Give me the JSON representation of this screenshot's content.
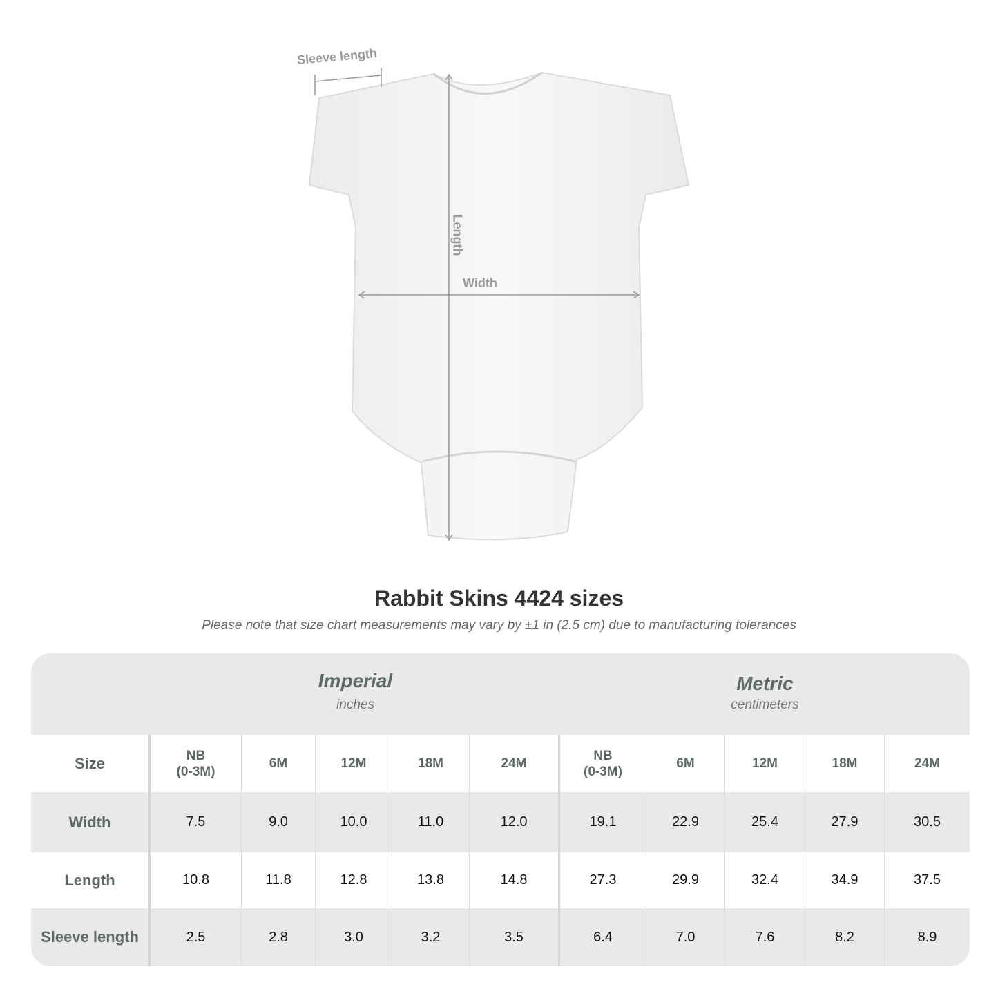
{
  "measurement_labels": {
    "sleeve": "Sleeve length",
    "length": "Length",
    "width": "Width"
  },
  "title": "Rabbit Skins 4424 sizes",
  "note": "Please note that size chart measurements may vary by ±1 in (2.5 cm) due to manufacturing tolerances",
  "table": {
    "imperial": {
      "name": "Imperial",
      "unit": "inches"
    },
    "metric": {
      "name": "Metric",
      "unit": "centimeters"
    },
    "size_label": "Size",
    "sizes_imperial": [
      "NB\n(0-3M)",
      "6M",
      "12M",
      "18M",
      "24M"
    ],
    "sizes_metric": [
      "NB\n(0-3M)",
      "6M",
      "12M",
      "18M",
      "24M"
    ],
    "rows": [
      {
        "label": "Width",
        "imperial": [
          "7.5",
          "9.0",
          "10.0",
          "11.0",
          "12.0"
        ],
        "metric": [
          "19.1",
          "22.9",
          "25.4",
          "27.9",
          "30.5"
        ]
      },
      {
        "label": "Length",
        "imperial": [
          "10.8",
          "11.8",
          "12.8",
          "13.8",
          "14.8"
        ],
        "metric": [
          "27.3",
          "29.9",
          "32.4",
          "34.9",
          "37.5"
        ]
      },
      {
        "label": "Sleeve length",
        "imperial": [
          "2.5",
          "2.8",
          "3.0",
          "3.2",
          "3.5"
        ],
        "metric": [
          "6.4",
          "7.0",
          "7.6",
          "8.2",
          "8.9"
        ]
      }
    ]
  },
  "colors": {
    "table_bg": "#e9e9e9",
    "header_text": "#5f6868",
    "measure_line": "#9a9a9a"
  }
}
